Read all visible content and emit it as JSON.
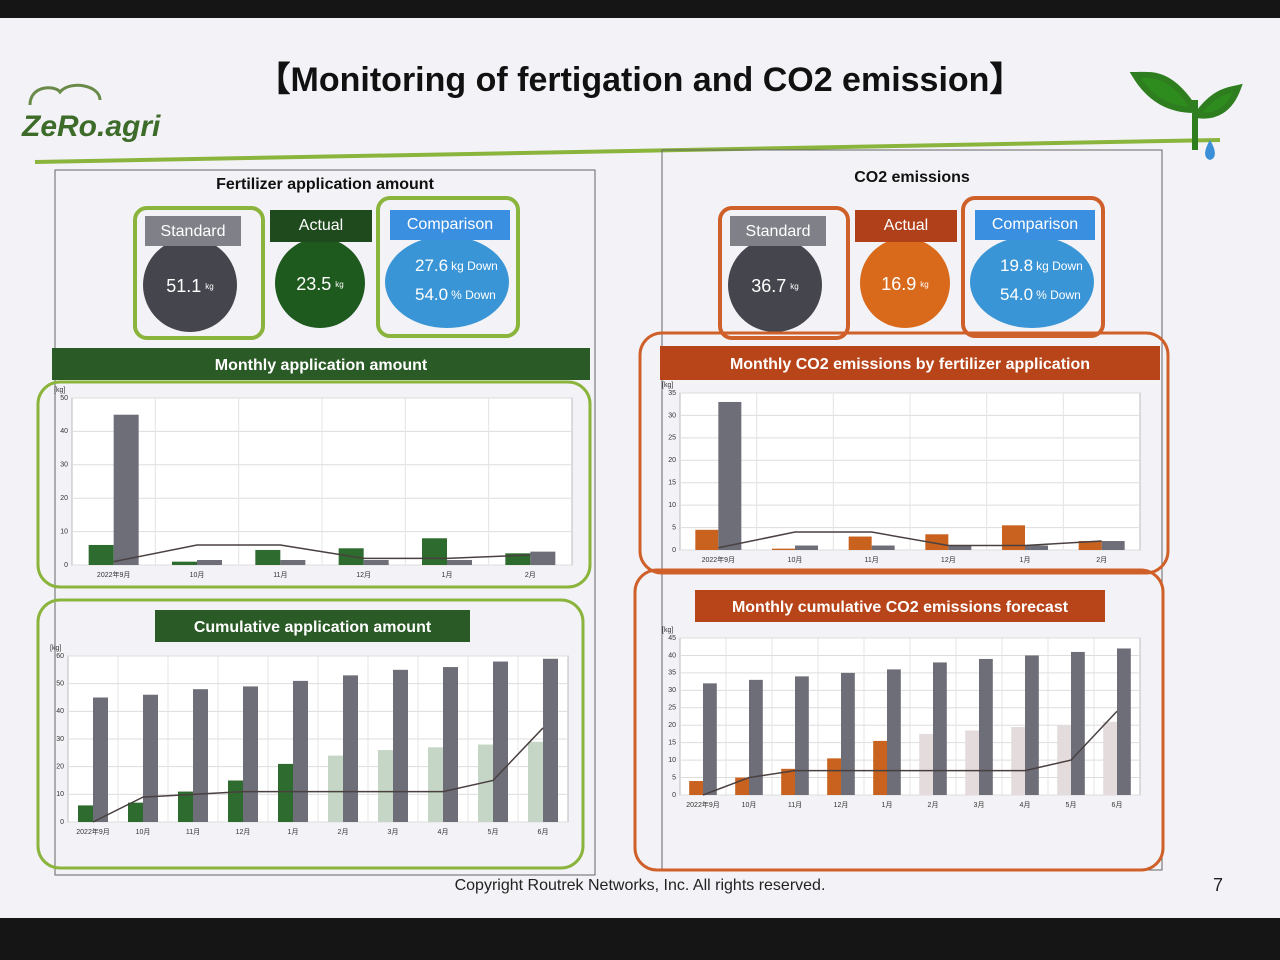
{
  "logo": "ZeRo.agri",
  "title": "【Monitoring of fertigation and CO2 emission】",
  "panels": [
    {
      "heading": "Fertilizer application amount",
      "standard": {
        "label": "Standard",
        "value": "51.1",
        "unit": "kg"
      },
      "actual": {
        "label": "Actual",
        "value": "23.5",
        "unit": "kg"
      },
      "comparison": {
        "label": "Comparison",
        "items": [
          {
            "value": "27.6",
            "unit": "kg Down"
          },
          {
            "value": "54.0",
            "unit": "% Down"
          }
        ]
      }
    },
    {
      "heading": "CO2 emissions",
      "standard": {
        "label": "Standard",
        "value": "36.7",
        "unit": "kg"
      },
      "actual": {
        "label": "Actual",
        "value": "16.9",
        "unit": "kg"
      },
      "comparison": {
        "label": "Comparison",
        "items": [
          {
            "value": "19.8",
            "unit": "kg Down"
          },
          {
            "value": "54.0",
            "unit": "% Down"
          }
        ]
      }
    }
  ],
  "chart_data": [
    {
      "type": "bar",
      "title": "Monthly application amount",
      "y_unit": "[kg]",
      "categories": [
        "2022年9月",
        "10月",
        "11月",
        "12月",
        "1月",
        "2月"
      ],
      "ylim": [
        0,
        50
      ],
      "yticks": [
        0,
        10,
        20,
        30,
        40,
        50
      ],
      "grid": true,
      "series": [
        {
          "kind": "bar",
          "color": "#2e6b2e",
          "values": [
            6,
            1,
            4.5,
            5,
            8,
            3.5
          ]
        },
        {
          "kind": "bar",
          "color": "#6e6e78",
          "values": [
            45,
            1.5,
            1.5,
            1.5,
            1.5,
            4
          ]
        },
        {
          "kind": "line",
          "color": "#4a4040",
          "values": [
            1,
            6,
            6,
            2,
            2,
            3
          ]
        }
      ]
    },
    {
      "type": "bar",
      "title": "Monthly CO2 emissions by fertilizer application",
      "y_unit": "[kg]",
      "categories": [
        "2022年9月",
        "10月",
        "11月",
        "12月",
        "1月",
        "2月"
      ],
      "ylim": [
        0,
        35
      ],
      "yticks": [
        0,
        5,
        10,
        15,
        20,
        25,
        30,
        35
      ],
      "grid": true,
      "series": [
        {
          "kind": "bar",
          "color": "#c8621e",
          "values": [
            4.5,
            0.3,
            3,
            3.5,
            5.5,
            2
          ]
        },
        {
          "kind": "bar",
          "color": "#6e6e78",
          "values": [
            33,
            1,
            1,
            1,
            1,
            2
          ]
        },
        {
          "kind": "line",
          "color": "#4a4040",
          "values": [
            0.5,
            4,
            4,
            1,
            1,
            2
          ]
        }
      ]
    },
    {
      "type": "bar",
      "title": "Cumulative application amount",
      "y_unit": "[kg]",
      "categories": [
        "2022年9月",
        "10月",
        "11月",
        "12月",
        "1月",
        "2月",
        "3月",
        "4月",
        "5月",
        "6月"
      ],
      "ylim": [
        0,
        60
      ],
      "yticks": [
        0,
        10,
        20,
        30,
        40,
        50,
        60
      ],
      "grid": true,
      "series": [
        {
          "kind": "bar",
          "color": "#2e6b2e",
          "values": [
            6,
            7,
            11,
            15,
            21,
            null,
            null,
            null,
            null,
            null
          ]
        },
        {
          "kind": "bar",
          "color": "#c6d6c6",
          "values": [
            null,
            null,
            null,
            null,
            null,
            24,
            26,
            27,
            28,
            29
          ]
        },
        {
          "kind": "bar",
          "color": "#6e6e78",
          "values": [
            45,
            46,
            48,
            49,
            51,
            53,
            55,
            56,
            58,
            59
          ]
        },
        {
          "kind": "line",
          "color": "#4a4040",
          "values": [
            0,
            9,
            10,
            11,
            11,
            11,
            11,
            11,
            15,
            34
          ]
        }
      ]
    },
    {
      "type": "bar",
      "title": "Monthly cumulative CO2 emissions forecast",
      "y_unit": "[kg]",
      "categories": [
        "2022年9月",
        "10月",
        "11月",
        "12月",
        "1月",
        "2月",
        "3月",
        "4月",
        "5月",
        "6月"
      ],
      "ylim": [
        0,
        45
      ],
      "yticks": [
        0,
        5,
        10,
        15,
        20,
        25,
        30,
        35,
        40,
        45
      ],
      "grid": true,
      "series": [
        {
          "kind": "bar",
          "color": "#c8621e",
          "values": [
            4,
            5,
            7.5,
            10.5,
            15.5,
            null,
            null,
            null,
            null,
            null
          ]
        },
        {
          "kind": "bar",
          "color": "#e4dcdc",
          "values": [
            null,
            null,
            null,
            null,
            null,
            17.5,
            18.5,
            19.5,
            20,
            21
          ]
        },
        {
          "kind": "bar",
          "color": "#6e6e78",
          "values": [
            32,
            33,
            34,
            35,
            36,
            38,
            39,
            40,
            41,
            42
          ]
        },
        {
          "kind": "line",
          "color": "#4a4040",
          "values": [
            0,
            5,
            7,
            7,
            7,
            7,
            7,
            7,
            10,
            24
          ]
        }
      ]
    }
  ],
  "footer": {
    "copyright": "Copyright Routrek Networks, Inc. All rights reserved.",
    "page": "7"
  }
}
